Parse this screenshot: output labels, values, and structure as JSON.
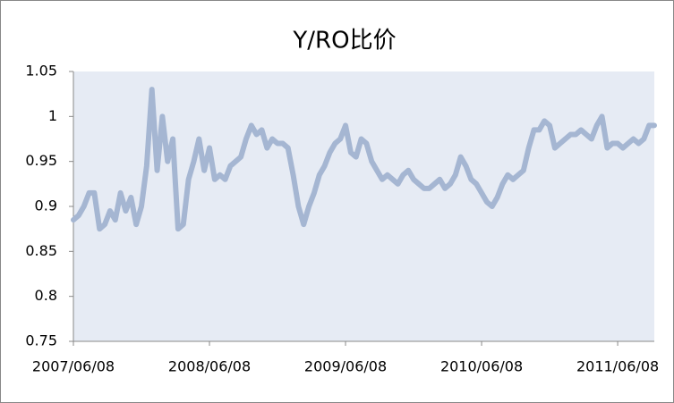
{
  "chart_data": {
    "type": "line",
    "title": "Y/RO比价",
    "categories": [
      "2007/06/08",
      null,
      null,
      null,
      null,
      null,
      null,
      null,
      null,
      null,
      null,
      null,
      null,
      null,
      null,
      null,
      null,
      null,
      null,
      null,
      null,
      null,
      null,
      null,
      null,
      null,
      "2008/06/08",
      null,
      null,
      null,
      null,
      null,
      null,
      null,
      null,
      null,
      null,
      null,
      null,
      null,
      null,
      null,
      null,
      null,
      null,
      null,
      null,
      null,
      null,
      null,
      null,
      null,
      "2009/06/08",
      null,
      null,
      null,
      null,
      null,
      null,
      null,
      null,
      null,
      null,
      null,
      null,
      null,
      null,
      null,
      null,
      null,
      null,
      null,
      null,
      null,
      null,
      null,
      null,
      null,
      "2010/06/08",
      null,
      null,
      null,
      null,
      null,
      null,
      null,
      null,
      null,
      null,
      null,
      null,
      null,
      null,
      null,
      null,
      null,
      null,
      null,
      null,
      null,
      null,
      null,
      null,
      null,
      "2011/06/08",
      null,
      null,
      null,
      null,
      null,
      null,
      null
    ],
    "series": [
      {
        "name": "Y/RO",
        "color": "#a5b6d2",
        "values": [
          0.885,
          0.89,
          0.9,
          0.915,
          0.915,
          0.875,
          0.88,
          0.895,
          0.885,
          0.915,
          0.895,
          0.91,
          0.88,
          0.9,
          0.945,
          1.03,
          0.94,
          1.0,
          0.95,
          0.975,
          0.875,
          0.88,
          0.93,
          0.95,
          0.975,
          0.94,
          0.965,
          0.93,
          0.935,
          0.93,
          0.945,
          0.95,
          0.955,
          0.975,
          0.99,
          0.98,
          0.985,
          0.965,
          0.975,
          0.97,
          0.97,
          0.965,
          0.935,
          0.9,
          0.88,
          0.9,
          0.915,
          0.935,
          0.945,
          0.96,
          0.97,
          0.975,
          0.99,
          0.96,
          0.955,
          0.975,
          0.97,
          0.95,
          0.94,
          0.93,
          0.935,
          0.93,
          0.925,
          0.935,
          0.94,
          0.93,
          0.925,
          0.92,
          0.92,
          0.925,
          0.93,
          0.92,
          0.925,
          0.935,
          0.955,
          0.945,
          0.93,
          0.925,
          0.915,
          0.905,
          0.9,
          0.91,
          0.925,
          0.935,
          0.93,
          0.935,
          0.94,
          0.965,
          0.985,
          0.985,
          0.995,
          0.99,
          0.965,
          0.97,
          0.975,
          0.98,
          0.98,
          0.985,
          0.98,
          0.975,
          0.99,
          1.0,
          0.965,
          0.97,
          0.97,
          0.965,
          0.97,
          0.975,
          0.97,
          0.975,
          0.99,
          0.99
        ]
      }
    ],
    "ylim": [
      0.75,
      1.05
    ],
    "yticks": [
      0.75,
      0.8,
      0.85,
      0.9,
      0.95,
      1,
      1.05
    ],
    "grid": false,
    "plot_background": "#e6ebf4"
  }
}
